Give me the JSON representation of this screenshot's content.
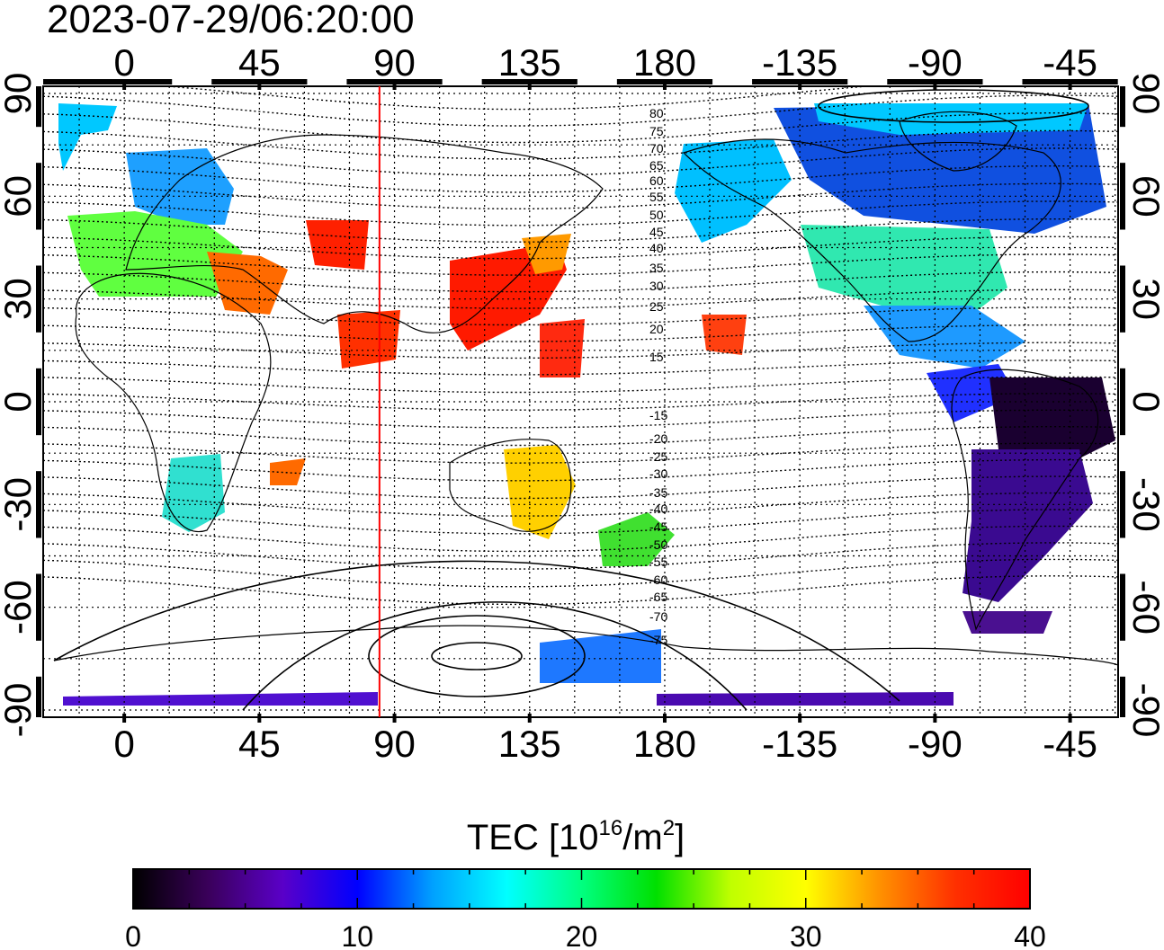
{
  "timestamp": "2023-07-29/06:20:00",
  "map": {
    "lon_ticks_top": [
      "0",
      "45",
      "90",
      "135",
      "180",
      "-135",
      "-90",
      "-45"
    ],
    "lon_ticks_bottom": [
      "0",
      "45",
      "90",
      "135",
      "180",
      "-135",
      "-90",
      "-45"
    ],
    "lat_ticks_left": [
      "90",
      "60",
      "30",
      "0",
      "-30",
      "-60",
      "-90"
    ],
    "lat_ticks_right": [
      "90",
      "60",
      "30",
      "0",
      "-30",
      "-60",
      "-90"
    ],
    "contour_labels_north": [
      "80",
      "75",
      "70",
      "65",
      "60",
      "55",
      "50",
      "45",
      "40",
      "35",
      "30",
      "25",
      "20",
      "15"
    ],
    "contour_labels_south": [
      "-15",
      "-20",
      "-25",
      "-30",
      "-35",
      "-40",
      "-45",
      "-50",
      "-55",
      "-60",
      "-65",
      "-70",
      "-75"
    ],
    "meridian_marker_lon": 85,
    "marker_color": "#ff0000"
  },
  "colorbar": {
    "label_main": "TEC  [10",
    "label_sup1": "16",
    "label_mid": "/m",
    "label_sup2": "2",
    "label_end": "]",
    "ticks": [
      "0",
      "10",
      "20",
      "30",
      "40"
    ],
    "range": [
      0,
      40
    ],
    "stops": [
      "#000000",
      "#3a005a",
      "#5a00c8",
      "#0000ff",
      "#00a0ff",
      "#00ffff",
      "#00ff80",
      "#00e000",
      "#c0ff00",
      "#ffff00",
      "#ff9000",
      "#ff3000",
      "#ff0000"
    ]
  }
}
